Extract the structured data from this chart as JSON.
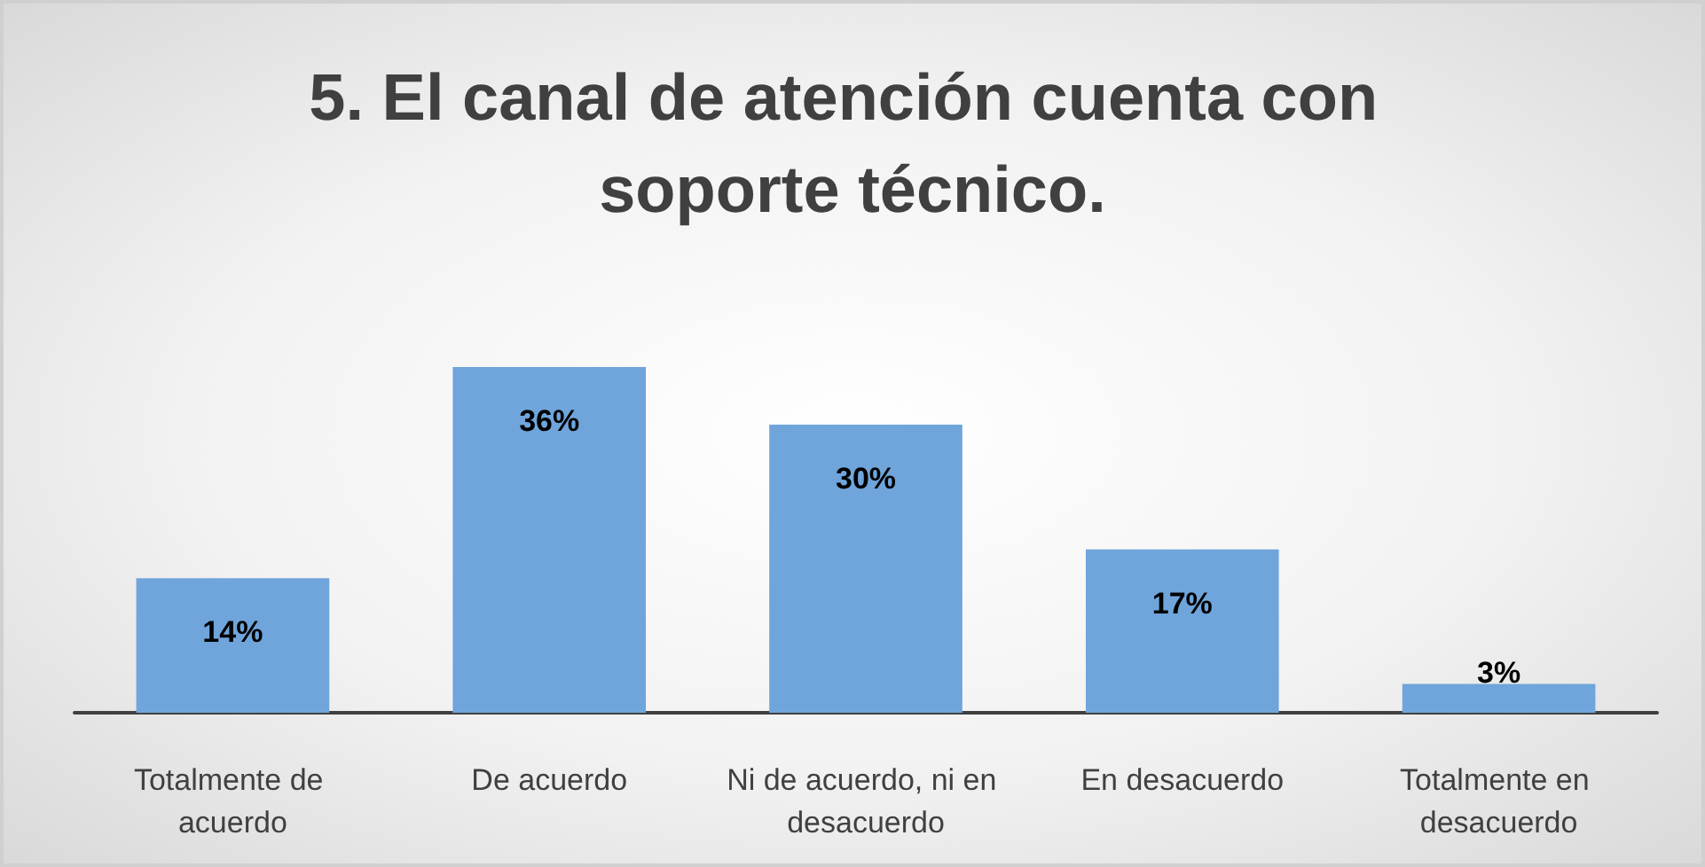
{
  "chart_data": {
    "type": "bar",
    "title": "5. El canal de atención cuenta con soporte técnico.",
    "categories": [
      "Totalmente de acuerdo",
      "De acuerdo",
      "Ni de acuerdo, ni en desacuerdo",
      "En desacuerdo",
      "Totalmente en desacuerdo"
    ],
    "values": [
      14,
      36,
      30,
      17,
      3
    ],
    "value_labels": [
      "14%",
      "36%",
      "30%",
      "17%",
      "3%"
    ],
    "color": "#6fa5db"
  }
}
